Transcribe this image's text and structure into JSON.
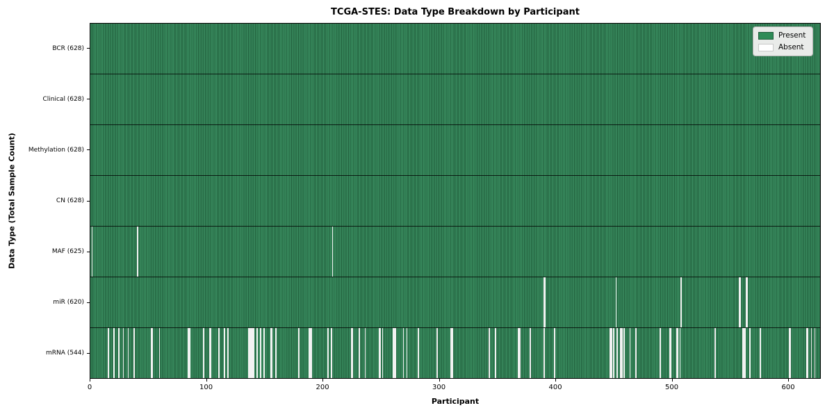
{
  "figure": {
    "title": "TCGA-STES: Data Type Breakdown by Participant",
    "xlabel": "Participant",
    "ylabel": "Data Type (Total Sample Count)"
  },
  "legend": {
    "items": [
      {
        "label": "Present",
        "color": "#2e8b57",
        "edge": "#1e5c3a"
      },
      {
        "label": "Absent",
        "color": "#ffffff",
        "edge": "#c8c8c8"
      }
    ]
  },
  "chart_data": {
    "type": "heatmap",
    "title": "TCGA-STES: Data Type Breakdown by Participant",
    "xlabel": "Participant",
    "ylabel": "Data Type (Total Sample Count)",
    "x_ticks": [
      0,
      100,
      200,
      300,
      400,
      500,
      600
    ],
    "xlim": [
      0,
      628
    ],
    "n_participants": 628,
    "grid": false,
    "legend_position": "upper right",
    "legend_entries": [
      "Present",
      "Absent"
    ],
    "colors": {
      "present": "#2e8b57",
      "absent": "#ffffff",
      "bar_edge": "#1f5c3a"
    },
    "rows": [
      {
        "label": "BCR (628)",
        "data_type": "BCR",
        "present_count": 628,
        "absent_participants": []
      },
      {
        "label": "Clinical (628)",
        "data_type": "Clinical",
        "present_count": 628,
        "absent_participants": []
      },
      {
        "label": "Methylation (628)",
        "data_type": "Methylation",
        "present_count": 628,
        "absent_participants": []
      },
      {
        "label": "CN (628)",
        "data_type": "CN",
        "present_count": 628,
        "absent_participants": []
      },
      {
        "label": "MAF (625)",
        "data_type": "MAF",
        "present_count": 625,
        "absent_participants": [
          1,
          40,
          208
        ]
      },
      {
        "label": "miR (620)",
        "data_type": "miR",
        "present_count": 620,
        "absent_participants": [
          390,
          391,
          452,
          508,
          558,
          559,
          564,
          565
        ]
      },
      {
        "label": "mRNA (544)",
        "data_type": "mRNA",
        "present_count": 544,
        "absent_participants": [
          15,
          20,
          24,
          28,
          32,
          37,
          52,
          53,
          59,
          84,
          85,
          97,
          102,
          103,
          110,
          115,
          118,
          136,
          137,
          138,
          139,
          140,
          143,
          146,
          149,
          155,
          156,
          159,
          179,
          188,
          189,
          190,
          204,
          207,
          224,
          225,
          231,
          236,
          248,
          249,
          251,
          260,
          261,
          262,
          269,
          272,
          282,
          298,
          310,
          311,
          343,
          348,
          368,
          369,
          378,
          390,
          399,
          447,
          448,
          450,
          453,
          456,
          457,
          459,
          464,
          469,
          490,
          498,
          499,
          504,
          505,
          507,
          537,
          561,
          562,
          563,
          567,
          576,
          601,
          602,
          616,
          617,
          620,
          623
        ]
      }
    ]
  }
}
